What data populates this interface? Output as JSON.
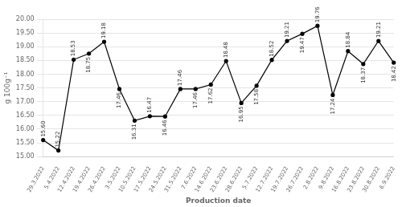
{
  "chart_data": {
    "type": "line",
    "categories": [
      "29.3.2022",
      "5.4.2022",
      "12.4.2022",
      "19.4.2022",
      "26.4.2022",
      "3.5.2022",
      "10.5.2022",
      "17.5.2022",
      "24.5.2022",
      "31.5.2022",
      "7.6.2022",
      "14.6.2022",
      "23.6.2022",
      "28.6.2022",
      "5.7.2022",
      "12.7.2022",
      "19.7.2022",
      "26.7.2022",
      "2.8.2022",
      "9.8.2022",
      "16.8.2022",
      "23.8.2022",
      "30.8.2022",
      "6.9.2022"
    ],
    "values": [
      15.6,
      15.22,
      18.53,
      18.75,
      19.18,
      17.46,
      16.31,
      16.47,
      16.46,
      17.46,
      17.46,
      17.62,
      18.48,
      16.95,
      17.58,
      18.52,
      19.21,
      19.47,
      19.76,
      17.24,
      18.84,
      18.37,
      19.21,
      18.42
    ],
    "value_labels": [
      "15.60",
      "15.22",
      "18.53",
      "18.75",
      "19.18",
      "17.46",
      "16.31",
      "16.47",
      "16.46",
      "17.46",
      "17.46",
      "17.62",
      "18.48",
      "16.95",
      "17.58",
      "18.52",
      "19.21",
      "19.47",
      "19.76",
      "17.24",
      "18.84",
      "18.37",
      "19.21",
      "18.42"
    ],
    "color": "#000000",
    "marker": "circle",
    "data_labels": true,
    "xlabel": "Production date",
    "ylabel": "g 100g⁻¹",
    "ylim": [
      15,
      20
    ],
    "yticks": [
      {
        "value": 15,
        "label": "15.00"
      },
      {
        "value": 15.5,
        "label": "15.50"
      },
      {
        "value": 16,
        "label": "16.00"
      },
      {
        "value": 16.5,
        "label": "16.50"
      },
      {
        "value": 17,
        "label": "17.00"
      },
      {
        "value": 17.5,
        "label": "17.50"
      },
      {
        "value": 18,
        "label": "18.00"
      },
      {
        "value": 18.5,
        "label": "18.50"
      },
      {
        "value": 19,
        "label": "19.00"
      },
      {
        "value": 19.5,
        "label": "19.50"
      },
      {
        "value": 20,
        "label": "20.00"
      }
    ],
    "grid": true
  }
}
